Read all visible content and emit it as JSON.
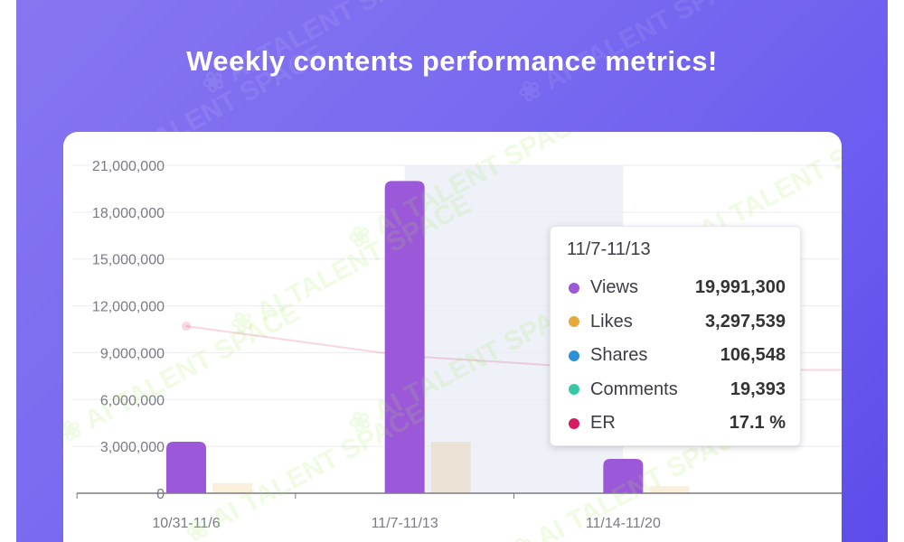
{
  "headline": "Weekly contents performance metrics!",
  "watermark": "AI TALENT SPACE",
  "colors": {
    "views": "#9b59d9",
    "likes": "#e6a93c",
    "shares": "#2d8fd6",
    "comments": "#36c9a5",
    "er": "#d81b60",
    "highlight": "#eef1f8",
    "grid": "#ececf2",
    "axis": "#7a7a86"
  },
  "tooltip": {
    "title": "11/7-11/13",
    "rows": [
      {
        "label": "Views",
        "value": "19,991,300",
        "color": "#9b59d9"
      },
      {
        "label": "Likes",
        "value": "3,297,539",
        "color": "#e6a93c"
      },
      {
        "label": "Shares",
        "value": "106,548",
        "color": "#2d8fd6"
      },
      {
        "label": "Comments",
        "value": "19,393",
        "color": "#36c9a5"
      },
      {
        "label": "ER",
        "value": "17.1 %",
        "color": "#d81b60"
      }
    ]
  },
  "chart_data": {
    "type": "bar",
    "categories": [
      "10/31-11/6",
      "11/7-11/13",
      "11/14-11/20"
    ],
    "y_ticks": [
      "0",
      "3,000,000",
      "6,000,000",
      "9,000,000",
      "12,000,000",
      "15,000,000",
      "18,000,000",
      "21,000,000"
    ],
    "ylim": [
      0,
      21000000
    ],
    "highlighted_category": "11/7-11/13",
    "series": [
      {
        "name": "Views",
        "values": [
          3300000,
          19991300,
          2200000
        ]
      },
      {
        "name": "Likes",
        "values": [
          650000,
          3297539,
          450000
        ]
      },
      {
        "name": "ER",
        "type": "line",
        "values": [
          10700000,
          8800000,
          7900000
        ]
      }
    ],
    "grid": true
  }
}
